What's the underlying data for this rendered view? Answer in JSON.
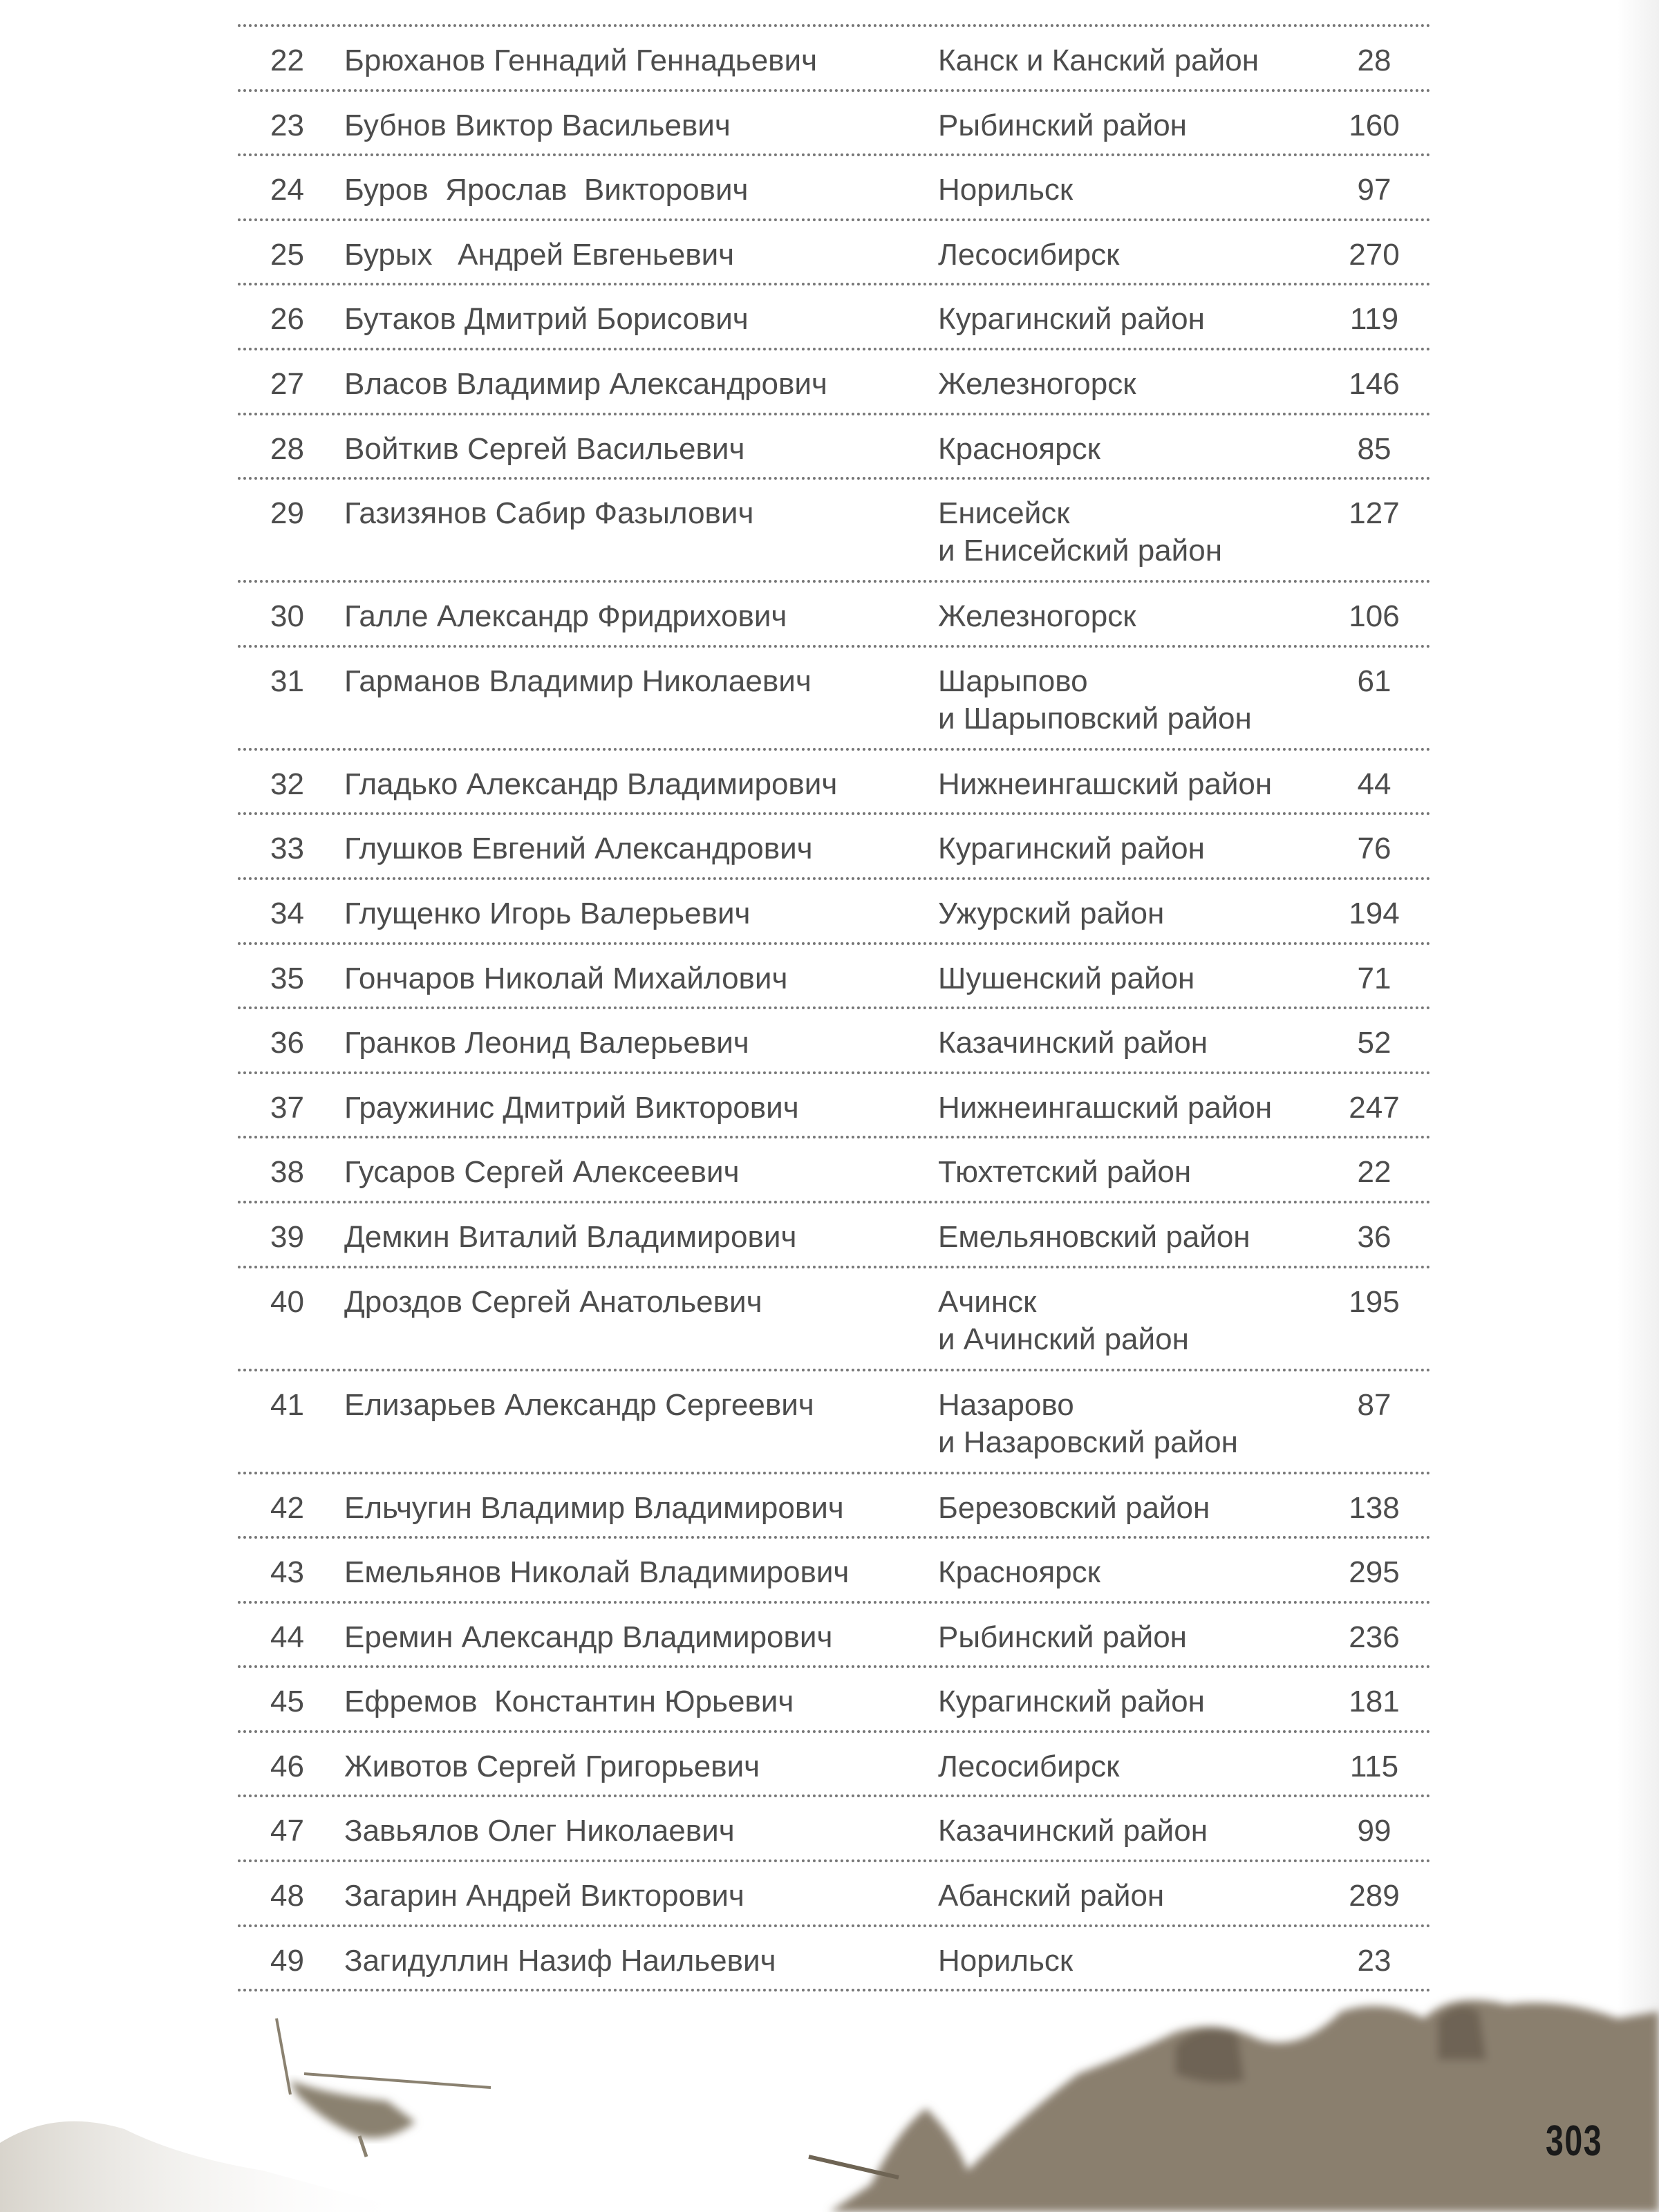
{
  "rows": [
    {
      "num": "22",
      "name": "Брюханов Геннадий Геннадьевич",
      "location": [
        "Канск и Канский район"
      ],
      "page": "28"
    },
    {
      "num": "23",
      "name": "Бубнов Виктор Васильевич",
      "location": [
        "Рыбинский район"
      ],
      "page": "160"
    },
    {
      "num": "24",
      "name": "Буров  Ярослав  Викторович",
      "location": [
        "Норильск"
      ],
      "page": "97"
    },
    {
      "num": "25",
      "name": "Бурых   Андрей Евгеньевич",
      "location": [
        "Лесосибирск"
      ],
      "page": "270"
    },
    {
      "num": "26",
      "name": "Бутаков Дмитрий Борисович",
      "location": [
        "Курагинский район"
      ],
      "page": "119"
    },
    {
      "num": "27",
      "name": "Власов Владимир Александрович",
      "location": [
        "Железногорск"
      ],
      "page": "146"
    },
    {
      "num": "28",
      "name": "Войткив Сергей Васильевич",
      "location": [
        "Красноярск"
      ],
      "page": "85"
    },
    {
      "num": "29",
      "name": "Газизянов Сабир Фазылович",
      "location": [
        "Енисейск",
        "и Енисейский район"
      ],
      "page": "127"
    },
    {
      "num": "30",
      "name": "Галле Александр Фридрихович",
      "location": [
        "Железногорск"
      ],
      "page": "106"
    },
    {
      "num": "31",
      "name": "Гарманов Владимир Николаевич",
      "location": [
        "Шарыпово",
        "и Шарыповский район"
      ],
      "page": "61"
    },
    {
      "num": "32",
      "name": "Гладько Александр Владимирович",
      "location": [
        "Нижнеингашский район"
      ],
      "page": "44"
    },
    {
      "num": "33",
      "name": "Глушков Евгений Александрович",
      "location": [
        "Курагинский район"
      ],
      "page": "76"
    },
    {
      "num": "34",
      "name": "Глущенко Игорь Валерьевич",
      "location": [
        "Ужурский район"
      ],
      "page": "194"
    },
    {
      "num": "35",
      "name": "Гончаров Николай Михайлович",
      "location": [
        "Шушенский район"
      ],
      "page": "71"
    },
    {
      "num": "36",
      "name": "Гранков Леонид Валерьевич",
      "location": [
        "Казачинский район"
      ],
      "page": "52"
    },
    {
      "num": "37",
      "name": "Граужинис Дмитрий Викторович",
      "location": [
        "Нижнеингашский район"
      ],
      "page": "247"
    },
    {
      "num": "38",
      "name": "Гусаров Сергей Алексеевич",
      "location": [
        "Тюхтетский район"
      ],
      "page": "22"
    },
    {
      "num": "39",
      "name": "Демкин Виталий Владимирович",
      "location": [
        "Емельяновский район"
      ],
      "page": "36"
    },
    {
      "num": "40",
      "name": "Дроздов Сергей Анатольевич",
      "location": [
        "Ачинск",
        "и Ачинский район"
      ],
      "page": "195"
    },
    {
      "num": "41",
      "name": "Елизарьев Александр Сергеевич",
      "location": [
        "Назарово",
        "и Назаровский район"
      ],
      "page": "87"
    },
    {
      "num": "42",
      "name": "Ельчугин Владимир Владимирович",
      "location": [
        "Березовский район"
      ],
      "page": "138"
    },
    {
      "num": "43",
      "name": "Емельянов Николай Владимирович",
      "location": [
        "Красноярск"
      ],
      "page": "295"
    },
    {
      "num": "44",
      "name": "Еремин Александр Владимирович",
      "location": [
        "Рыбинский район"
      ],
      "page": "236"
    },
    {
      "num": "45",
      "name": "Ефремов  Константин Юрьевич",
      "location": [
        "Курагинский район"
      ],
      "page": "181"
    },
    {
      "num": "46",
      "name": "Животов Сергей Григорьевич",
      "location": [
        "Лесосибирск"
      ],
      "page": "115"
    },
    {
      "num": "47",
      "name": "Завьялов Олег Николаевич",
      "location": [
        "Казачинский район"
      ],
      "page": "99"
    },
    {
      "num": "48",
      "name": "Загарин Андрей Викторович",
      "location": [
        "Абанский район"
      ],
      "page": "289"
    },
    {
      "num": "49",
      "name": "Загидуллин Назиф Наильевич",
      "location": [
        "Норильск"
      ],
      "page": "23"
    }
  ],
  "page_number": "303",
  "colors": {
    "text": "#4d4d4d",
    "photo_tint": "#8a7f6e"
  }
}
